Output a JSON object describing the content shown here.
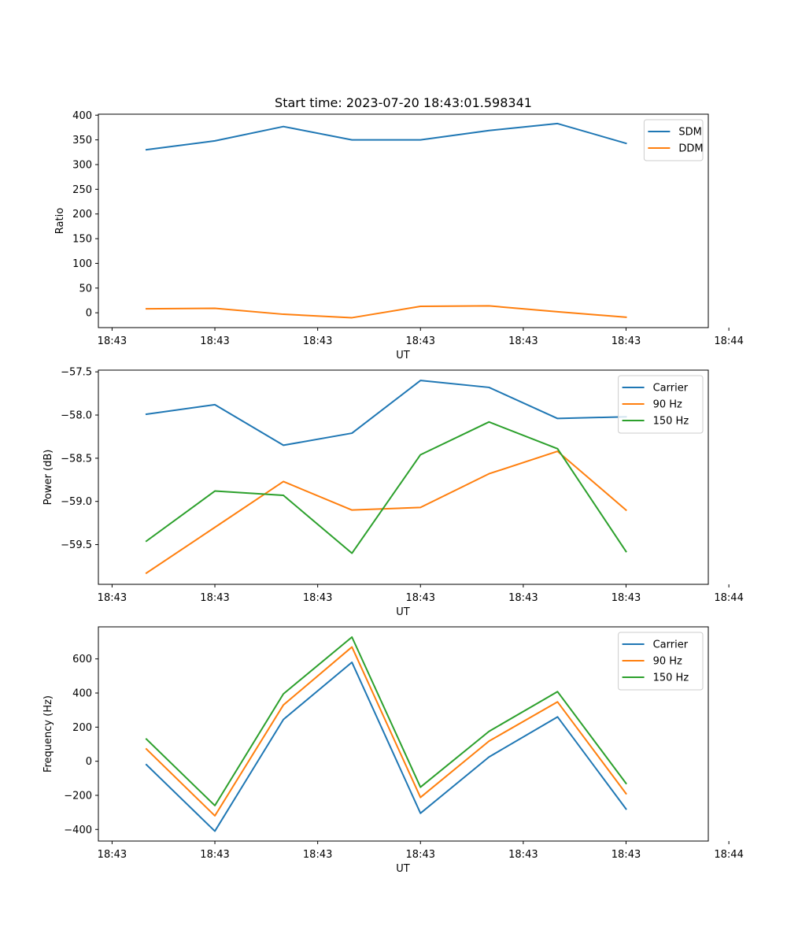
{
  "figure": {
    "suptitle": "Start time: 2023-07-20 18:43:01.598341"
  },
  "colors": {
    "blue": "#1f77b4",
    "orange": "#ff7f0e",
    "green": "#2ca02c"
  },
  "chart_data": [
    {
      "type": "line",
      "title": "Start time: 2023-07-20 18:43:01.598341",
      "xlabel": "UT",
      "ylabel": "Ratio",
      "x": [
        1,
        2,
        3,
        4,
        5,
        6,
        7,
        8
      ],
      "xlim": [
        0.3,
        9.2
      ],
      "xticks": [
        0.5,
        2,
        3.5,
        5,
        6.5,
        8,
        9.5
      ],
      "xtick_labels": [
        "18:43",
        "18:43",
        "18:43",
        "18:43",
        "18:43",
        "18:43",
        "18:44"
      ],
      "ylim": [
        -30,
        402
      ],
      "yticks": [
        0,
        50,
        100,
        150,
        200,
        250,
        300,
        350,
        400
      ],
      "ytick_labels": [
        "0",
        "50",
        "100",
        "150",
        "200",
        "250",
        "300",
        "350",
        "400"
      ],
      "legend_location": "top-right",
      "series": [
        {
          "name": "SDM",
          "color": "#1f77b4",
          "values": [
            330,
            348,
            377,
            350,
            350,
            369,
            383,
            343
          ]
        },
        {
          "name": "DDM",
          "color": "#ff7f0e",
          "values": [
            8,
            9,
            -3,
            -10,
            13,
            14,
            2,
            -9
          ]
        }
      ]
    },
    {
      "type": "line",
      "title": "",
      "xlabel": "UT",
      "ylabel": "Power (dB)",
      "x": [
        1,
        2,
        3,
        4,
        5,
        6,
        7,
        8
      ],
      "xlim": [
        0.3,
        9.2
      ],
      "xticks": [
        0.5,
        2,
        3.5,
        5,
        6.5,
        8,
        9.5
      ],
      "xtick_labels": [
        "18:43",
        "18:43",
        "18:43",
        "18:43",
        "18:43",
        "18:43",
        "18:44"
      ],
      "ylim": [
        -59.96,
        -57.48
      ],
      "yticks": [
        -59.5,
        -59.0,
        -58.5,
        -58.0,
        -57.5
      ],
      "ytick_labels": [
        "−59.5",
        "−59.0",
        "−58.5",
        "−58.0",
        "−57.5"
      ],
      "legend_location": "top-right",
      "series": [
        {
          "name": "Carrier",
          "color": "#1f77b4",
          "values": [
            -57.99,
            -57.88,
            -58.35,
            -58.21,
            -57.6,
            -57.68,
            -58.04,
            -58.02
          ]
        },
        {
          "name": "90 Hz",
          "color": "#ff7f0e",
          "values": [
            -59.83,
            -59.3,
            -58.77,
            -59.1,
            -59.07,
            -58.68,
            -58.42,
            -59.1
          ]
        },
        {
          "name": "150 Hz",
          "color": "#2ca02c",
          "values": [
            -59.46,
            -58.88,
            -58.93,
            -59.6,
            -58.46,
            -58.08,
            -58.39,
            -59.58
          ]
        }
      ]
    },
    {
      "type": "line",
      "title": "",
      "xlabel": "UT",
      "ylabel": "Frequency (Hz)",
      "x": [
        1,
        2,
        3,
        4,
        5,
        6,
        7,
        8
      ],
      "xlim": [
        0.3,
        9.2
      ],
      "xticks": [
        0.5,
        2,
        3.5,
        5,
        6.5,
        8,
        9.5
      ],
      "xtick_labels": [
        "18:43",
        "18:43",
        "18:43",
        "18:43",
        "18:43",
        "18:43",
        "18:44"
      ],
      "ylim": [
        -468,
        788
      ],
      "yticks": [
        -400,
        -200,
        0,
        200,
        400,
        600
      ],
      "ytick_labels": [
        "−400",
        "−200",
        "0",
        "200",
        "400",
        "600"
      ],
      "legend_location": "top-right",
      "series": [
        {
          "name": "Carrier",
          "color": "#1f77b4",
          "values": [
            -20,
            -410,
            245,
            580,
            -305,
            25,
            260,
            -280
          ]
        },
        {
          "name": "90 Hz",
          "color": "#ff7f0e",
          "values": [
            72,
            -320,
            330,
            670,
            -212,
            118,
            348,
            -190
          ]
        },
        {
          "name": "150 Hz",
          "color": "#2ca02c",
          "values": [
            130,
            -260,
            395,
            728,
            -152,
            175,
            408,
            -130
          ]
        }
      ]
    }
  ]
}
